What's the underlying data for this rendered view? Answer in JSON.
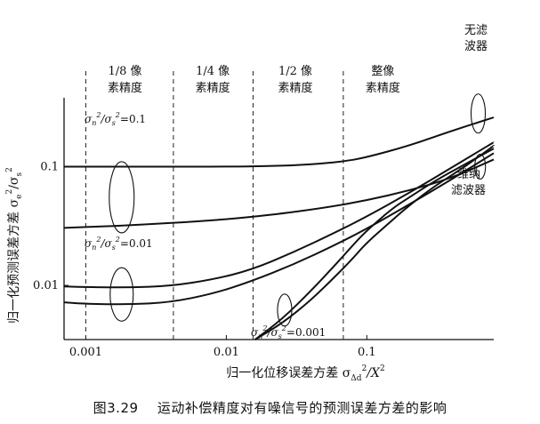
{
  "chart_data": {
    "type": "line",
    "x_scale": "log",
    "y_scale": "log",
    "xlim": [
      0.0007,
      0.8
    ],
    "ylim": [
      0.0035,
      0.32
    ],
    "xlabel_prefix": "归一化位移误差方差 σ",
    "xlabel_sub": "Δd",
    "xlabel_sup": "2",
    "xlabel_suffix": "/X",
    "xlabel_suffix_sup": "2",
    "ylabel_prefix": "归一化预测误差方差 σ",
    "ylabel_sub1": "e",
    "ylabel_sup1": "2",
    "ylabel_mid": "/σ",
    "ylabel_sub2": "s",
    "ylabel_sup2": "2",
    "x_ticks": [
      {
        "value": 0.001,
        "label": "0.001"
      },
      {
        "value": 0.01,
        "label": "0.01"
      },
      {
        "value": 0.1,
        "label": "0.1"
      }
    ],
    "y_ticks": [
      {
        "value": 0.1,
        "label": "0.1"
      },
      {
        "value": 0.01,
        "label": "0.01"
      }
    ],
    "precision_boundaries": [
      0.001,
      0.0042,
      0.0155,
      0.068
    ],
    "precision_regions": [
      {
        "line1": "1/8 像",
        "line2": "素精度",
        "x": 0.0019
      },
      {
        "line1": "1/4 像",
        "line2": "素精度",
        "x": 0.008
      },
      {
        "line1": "1/2 像",
        "line2": "素精度",
        "x": 0.031
      },
      {
        "line1": "整像",
        "line2": "素精度",
        "x": 0.13
      }
    ],
    "series": [
      {
        "name": "无滤波器, σn²/σs²=0.1",
        "points": [
          [
            0.0007,
            0.1
          ],
          [
            0.001,
            0.1
          ],
          [
            0.003,
            0.1
          ],
          [
            0.01,
            0.1
          ],
          [
            0.02,
            0.101
          ],
          [
            0.04,
            0.104
          ],
          [
            0.07,
            0.111
          ],
          [
            0.1,
            0.12
          ],
          [
            0.2,
            0.15
          ],
          [
            0.4,
            0.2
          ],
          [
            0.8,
            0.26
          ]
        ]
      },
      {
        "name": "维纳滤波器, σn²/σs²=0.1",
        "points": [
          [
            0.0007,
            0.0305
          ],
          [
            0.001,
            0.031
          ],
          [
            0.002,
            0.032
          ],
          [
            0.005,
            0.034
          ],
          [
            0.01,
            0.036
          ],
          [
            0.02,
            0.039
          ],
          [
            0.05,
            0.045
          ],
          [
            0.1,
            0.052
          ],
          [
            0.2,
            0.063
          ],
          [
            0.4,
            0.08
          ],
          [
            0.8,
            0.115
          ]
        ]
      },
      {
        "name": "无滤波器, σn²/σs²=0.01",
        "points": [
          [
            0.0007,
            0.0098
          ],
          [
            0.001,
            0.0097
          ],
          [
            0.002,
            0.0096
          ],
          [
            0.004,
            0.0099
          ],
          [
            0.008,
            0.0112
          ],
          [
            0.015,
            0.0135
          ],
          [
            0.03,
            0.019
          ],
          [
            0.06,
            0.028
          ],
          [
            0.1,
            0.038
          ],
          [
            0.2,
            0.06
          ],
          [
            0.4,
            0.098
          ],
          [
            0.8,
            0.16
          ]
        ]
      },
      {
        "name": "维纳滤波器, σn²/σs²=0.01",
        "points": [
          [
            0.0007,
            0.0072
          ],
          [
            0.001,
            0.007
          ],
          [
            0.002,
            0.0069
          ],
          [
            0.004,
            0.0072
          ],
          [
            0.008,
            0.0085
          ],
          [
            0.015,
            0.0108
          ],
          [
            0.03,
            0.015
          ],
          [
            0.06,
            0.022
          ],
          [
            0.1,
            0.03
          ],
          [
            0.2,
            0.048
          ],
          [
            0.4,
            0.078
          ],
          [
            0.8,
            0.13
          ]
        ]
      },
      {
        "name": "无滤波器, σn²/σs²=0.001",
        "points": [
          [
            0.016,
            0.0035
          ],
          [
            0.025,
            0.0052
          ],
          [
            0.04,
            0.009
          ],
          [
            0.06,
            0.015
          ],
          [
            0.08,
            0.022
          ],
          [
            0.1,
            0.029
          ],
          [
            0.15,
            0.044
          ],
          [
            0.2,
            0.055
          ],
          [
            0.3,
            0.075
          ],
          [
            0.5,
            0.105
          ],
          [
            0.8,
            0.142
          ]
        ]
      },
      {
        "name": "维纳滤波器, σn²/σs²=0.001",
        "points": [
          [
            0.016,
            0.0035
          ],
          [
            0.025,
            0.0048
          ],
          [
            0.04,
            0.0075
          ],
          [
            0.06,
            0.012
          ],
          [
            0.08,
            0.017
          ],
          [
            0.1,
            0.023
          ],
          [
            0.15,
            0.035
          ],
          [
            0.2,
            0.047
          ],
          [
            0.3,
            0.068
          ],
          [
            0.5,
            0.1
          ],
          [
            0.8,
            0.15
          ]
        ]
      }
    ],
    "annotations": {
      "no_filter_l1": "无滤",
      "no_filter_l2": "波器",
      "wiener_l1": "维纳",
      "wiener_l2": "滤波器",
      "ratio_label_num": "n",
      "ratio_label_den": "s",
      "ratio_sup": "2",
      "ratio_a_value": "=0.1",
      "ratio_b_value": "=0.01",
      "ratio_c_value": "=0.001"
    }
  },
  "caption": {
    "number": "图3.29",
    "text": "运动补偿精度对有噪信号的预测误差方差的影响"
  }
}
